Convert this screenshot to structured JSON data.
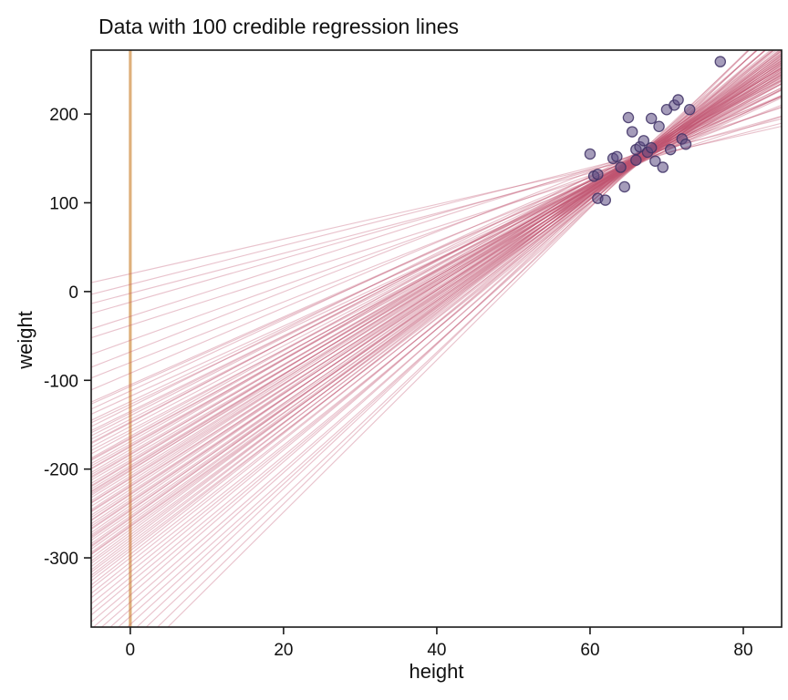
{
  "chart_data": {
    "type": "scatter",
    "title": "Data with 100 credible regression lines",
    "xlabel": "height",
    "ylabel": "weight",
    "xlim": [
      -5.1,
      85.0
    ],
    "ylim": [
      -378,
      272
    ],
    "xticks": [
      0,
      20,
      40,
      60,
      80
    ],
    "yticks": [
      -300,
      -200,
      -100,
      0,
      100,
      200
    ],
    "grid": false,
    "legend": "none",
    "colors": {
      "regression_line": "#c0536f",
      "point_fill": "#5b4a82",
      "point_stroke": "#3f3366",
      "vline": "#d9a265",
      "frame": "#1a1a1a"
    },
    "vline_x": 0,
    "n_lines": 100,
    "lines_pivot_x": 66.5,
    "lines": [
      [
        20,
        150
      ],
      [
        8,
        154
      ],
      [
        -2,
        148
      ],
      [
        -12,
        152
      ],
      [
        -28,
        156
      ],
      [
        -38,
        146
      ],
      [
        -55,
        151
      ],
      [
        -68,
        157
      ],
      [
        -80,
        147
      ],
      [
        -92,
        153
      ],
      [
        -105,
        149
      ],
      [
        -112,
        155
      ],
      [
        -118,
        145
      ],
      [
        -124,
        151
      ],
      [
        -130,
        158
      ],
      [
        -135,
        148
      ],
      [
        -140,
        153
      ],
      [
        -144,
        147
      ],
      [
        -148,
        156
      ],
      [
        -152,
        150
      ],
      [
        -156,
        144
      ],
      [
        -159,
        152
      ],
      [
        -163,
        157
      ],
      [
        -166,
        149
      ],
      [
        -169,
        154
      ],
      [
        -172,
        146
      ],
      [
        -175,
        151
      ],
      [
        -178,
        158
      ],
      [
        -181,
        148
      ],
      [
        -184,
        153
      ],
      [
        -187,
        145
      ],
      [
        -190,
        150
      ],
      [
        -193,
        155
      ],
      [
        -196,
        147
      ],
      [
        -199,
        152
      ],
      [
        -202,
        157
      ],
      [
        -205,
        149
      ],
      [
        -208,
        154
      ],
      [
        -211,
        146
      ],
      [
        -214,
        151
      ],
      [
        -217,
        156
      ],
      [
        -220,
        148
      ],
      [
        -223,
        153
      ],
      [
        -226,
        145
      ],
      [
        -229,
        150
      ],
      [
        -232,
        155
      ],
      [
        -235,
        147
      ],
      [
        -238,
        152
      ],
      [
        -241,
        157
      ],
      [
        -244,
        149
      ],
      [
        -247,
        154
      ],
      [
        -250,
        146
      ],
      [
        -253,
        151
      ],
      [
        -256,
        156
      ],
      [
        -259,
        148
      ],
      [
        -262,
        153
      ],
      [
        -265,
        145
      ],
      [
        -268,
        150
      ],
      [
        -271,
        155
      ],
      [
        -274,
        147
      ],
      [
        -277,
        152
      ],
      [
        -280,
        157
      ],
      [
        -283,
        149
      ],
      [
        -286,
        154
      ],
      [
        -289,
        146
      ],
      [
        -292,
        151
      ],
      [
        -296,
        156
      ],
      [
        -300,
        148
      ],
      [
        -305,
        153
      ],
      [
        -310,
        145
      ],
      [
        -316,
        150
      ],
      [
        -322,
        155
      ],
      [
        -328,
        147
      ],
      [
        -335,
        152
      ],
      [
        -342,
        157
      ],
      [
        -350,
        149
      ],
      [
        -358,
        154
      ],
      [
        -366,
        146
      ],
      [
        -375,
        151
      ],
      [
        -385,
        156
      ],
      [
        -395,
        148
      ],
      [
        -408,
        153
      ],
      [
        -420,
        150
      ],
      [
        -165,
        147
      ],
      [
        -174,
        153
      ],
      [
        -183,
        149
      ],
      [
        -192,
        155
      ],
      [
        -201,
        147
      ],
      [
        -210,
        152
      ],
      [
        -219,
        148
      ],
      [
        -228,
        154
      ],
      [
        -237,
        150
      ],
      [
        -246,
        146
      ],
      [
        -255,
        152
      ],
      [
        -264,
        148
      ],
      [
        -147,
        154
      ],
      [
        -137,
        150
      ],
      [
        -127,
        145
      ],
      [
        -198,
        151
      ],
      [
        -107,
        149
      ]
    ],
    "points": [
      [
        60,
        155
      ],
      [
        60.5,
        130
      ],
      [
        61,
        132
      ],
      [
        61,
        105
      ],
      [
        62,
        103
      ],
      [
        63,
        150
      ],
      [
        63.5,
        152
      ],
      [
        64,
        140
      ],
      [
        64.5,
        118
      ],
      [
        65,
        196
      ],
      [
        65.5,
        180
      ],
      [
        66,
        160
      ],
      [
        66,
        148
      ],
      [
        66.5,
        163
      ],
      [
        67,
        170
      ],
      [
        67.5,
        157
      ],
      [
        68,
        195
      ],
      [
        68,
        162
      ],
      [
        68.5,
        147
      ],
      [
        69,
        186
      ],
      [
        69.5,
        140
      ],
      [
        70,
        205
      ],
      [
        70.5,
        160
      ],
      [
        71,
        210
      ],
      [
        71.5,
        216
      ],
      [
        72,
        172
      ],
      [
        72.5,
        166
      ],
      [
        73,
        205
      ],
      [
        77,
        259
      ]
    ]
  }
}
